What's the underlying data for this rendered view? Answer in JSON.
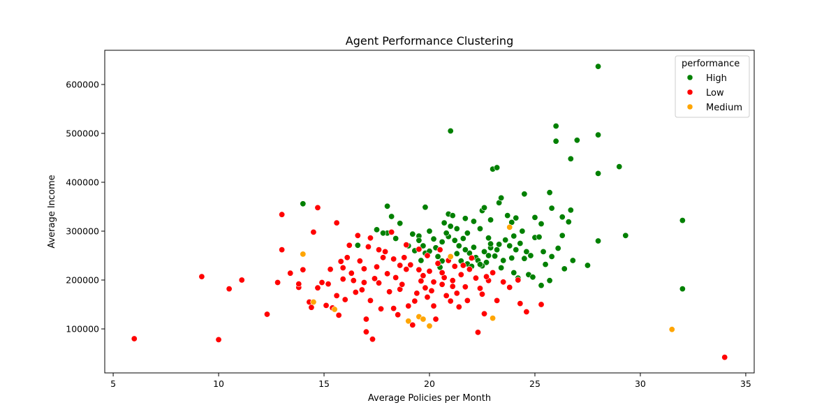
{
  "chart_data": {
    "type": "scatter",
    "title": "Agent Performance Clustering",
    "xlabel": "Average Policies per Month",
    "ylabel": "Average Income",
    "xlim": [
      4.6,
      35.4
    ],
    "ylim": [
      10000,
      670000
    ],
    "xticks": [
      5,
      10,
      15,
      20,
      25,
      30,
      35
    ],
    "yticks": [
      100000,
      200000,
      300000,
      400000,
      500000,
      600000
    ],
    "grid": false,
    "legend": {
      "title": "performance",
      "placement": "top-right",
      "entries": [
        "High",
        "Low",
        "Medium"
      ]
    },
    "series": [
      {
        "name": "High",
        "color": "#008000",
        "points": [
          [
            28,
            637000
          ],
          [
            21,
            505000
          ],
          [
            26,
            515000
          ],
          [
            26,
            484000
          ],
          [
            27,
            486000
          ],
          [
            28,
            497000
          ],
          [
            26.7,
            448000
          ],
          [
            29,
            432000
          ],
          [
            23,
            427000
          ],
          [
            23.2,
            430000
          ],
          [
            28,
            418000
          ],
          [
            24.5,
            376000
          ],
          [
            25.7,
            379000
          ],
          [
            23.3,
            358000
          ],
          [
            23.4,
            368000
          ],
          [
            25.8,
            347000
          ],
          [
            26.7,
            343000
          ],
          [
            26.3,
            329000
          ],
          [
            26.6,
            319000
          ],
          [
            32,
            322000
          ],
          [
            29.3,
            291000
          ],
          [
            28,
            280000
          ],
          [
            32,
            182000
          ],
          [
            27.5,
            230000
          ],
          [
            26.8,
            240000
          ],
          [
            26.4,
            223000
          ],
          [
            25.7,
            199000
          ],
          [
            25.3,
            189000
          ],
          [
            14,
            356000
          ],
          [
            18,
            351000
          ],
          [
            19.8,
            349000
          ],
          [
            18.2,
            330000
          ],
          [
            18.6,
            316000
          ],
          [
            17.5,
            303000
          ],
          [
            18,
            296000
          ],
          [
            17.8,
            296000
          ],
          [
            16.6,
            271000
          ],
          [
            18.4,
            285000
          ],
          [
            19.5,
            290000
          ],
          [
            20,
            300000
          ],
          [
            19,
            270000
          ],
          [
            19.3,
            260000
          ],
          [
            19.8,
            255000
          ],
          [
            20.4,
            248000
          ],
          [
            20.9,
            335000
          ],
          [
            21.1,
            332000
          ],
          [
            20.7,
            317000
          ],
          [
            21,
            310000
          ],
          [
            21.3,
            305000
          ],
          [
            21.7,
            326000
          ],
          [
            22.1,
            320000
          ],
          [
            22.5,
            342000
          ],
          [
            22.6,
            348000
          ],
          [
            22.9,
            323000
          ],
          [
            23.7,
            332000
          ],
          [
            23.9,
            318000
          ],
          [
            24.1,
            327000
          ],
          [
            24.4,
            300000
          ],
          [
            25,
            328000
          ],
          [
            25.3,
            315000
          ],
          [
            25,
            287000
          ],
          [
            25.2,
            288000
          ],
          [
            25.4,
            258000
          ],
          [
            25.5,
            232000
          ],
          [
            25.8,
            248000
          ],
          [
            26.1,
            265000
          ],
          [
            26.3,
            291000
          ],
          [
            24.6,
            258000
          ],
          [
            24.8,
            250000
          ],
          [
            24.3,
            275000
          ],
          [
            24.1,
            262000
          ],
          [
            23.9,
            245000
          ],
          [
            23.5,
            240000
          ],
          [
            23.2,
            262000
          ],
          [
            22.8,
            250000
          ],
          [
            22.7,
            236000
          ],
          [
            22.5,
            229000
          ],
          [
            22.2,
            246000
          ],
          [
            21.9,
            255000
          ],
          [
            21.7,
            262000
          ],
          [
            21.4,
            270000
          ],
          [
            21.2,
            281000
          ],
          [
            20.9,
            289000
          ],
          [
            20.6,
            278000
          ],
          [
            20.3,
            266000
          ],
          [
            20,
            259000
          ],
          [
            19.7,
            270000
          ],
          [
            19.5,
            281000
          ],
          [
            19.2,
            294000
          ],
          [
            21.5,
            239000
          ],
          [
            21.8,
            233000
          ],
          [
            22,
            228000
          ],
          [
            22.3,
            240000
          ],
          [
            22.6,
            258000
          ],
          [
            22.9,
            266000
          ],
          [
            23.3,
            273000
          ],
          [
            23.6,
            282000
          ],
          [
            24,
            290000
          ],
          [
            24.5,
            244000
          ],
          [
            24.7,
            211000
          ],
          [
            24,
            215000
          ],
          [
            23.4,
            225000
          ],
          [
            22.4,
            305000
          ],
          [
            21.8,
            296000
          ],
          [
            20.8,
            296000
          ],
          [
            20.2,
            284000
          ],
          [
            19.6,
            240000
          ],
          [
            22.9,
            274000
          ],
          [
            23.1,
            249000
          ],
          [
            22.1,
            267000
          ],
          [
            21,
            247000
          ],
          [
            20.6,
            239000
          ],
          [
            24.9,
            206000
          ],
          [
            24.2,
            204000
          ],
          [
            23.8,
            270000
          ],
          [
            21.6,
            285000
          ],
          [
            22.8,
            286000
          ],
          [
            21.3,
            254000
          ],
          [
            20.5,
            226000
          ],
          [
            22.4,
            232000
          ]
        ]
      },
      {
        "name": "Low",
        "color": "#ff0000",
        "points": [
          [
            6,
            80000
          ],
          [
            9.2,
            207000
          ],
          [
            10,
            78000
          ],
          [
            10.5,
            182000
          ],
          [
            11.1,
            200000
          ],
          [
            12.3,
            130000
          ],
          [
            12.8,
            195000
          ],
          [
            13,
            262000
          ],
          [
            13,
            334000
          ],
          [
            13.4,
            214000
          ],
          [
            13.8,
            185000
          ],
          [
            13.8,
            192000
          ],
          [
            14,
            221000
          ],
          [
            14.3,
            155000
          ],
          [
            14.4,
            144000
          ],
          [
            14.5,
            298000
          ],
          [
            14.7,
            348000
          ],
          [
            14.7,
            184000
          ],
          [
            14.9,
            195000
          ],
          [
            15.1,
            148000
          ],
          [
            15.2,
            192000
          ],
          [
            15.3,
            222000
          ],
          [
            15.4,
            143000
          ],
          [
            15.6,
            317000
          ],
          [
            15.7,
            128000
          ],
          [
            15.6,
            168000
          ],
          [
            15.8,
            238000
          ],
          [
            15.9,
            202000
          ],
          [
            16.1,
            246000
          ],
          [
            16.2,
            271000
          ],
          [
            16.3,
            214000
          ],
          [
            16.4,
            199000
          ],
          [
            16.6,
            291000
          ],
          [
            16.7,
            239000
          ],
          [
            16.8,
            180000
          ],
          [
            16.9,
            223000
          ],
          [
            17,
            120000
          ],
          [
            17,
            94000
          ],
          [
            17.3,
            79000
          ],
          [
            17.1,
            268000
          ],
          [
            17.2,
            286000
          ],
          [
            17.5,
            227000
          ],
          [
            17.6,
            194000
          ],
          [
            17.7,
            141000
          ],
          [
            17.9,
            258000
          ],
          [
            18,
            213000
          ],
          [
            18.2,
            298000
          ],
          [
            18.3,
            142000
          ],
          [
            18.5,
            129000
          ],
          [
            18.6,
            181000
          ],
          [
            18.8,
            246000
          ],
          [
            18.9,
            222000
          ],
          [
            19,
            147000
          ],
          [
            19.2,
            108000
          ],
          [
            19.4,
            173000
          ],
          [
            19.5,
            263000
          ],
          [
            19.6,
            198000
          ],
          [
            19.8,
            184000
          ],
          [
            19.9,
            165000
          ],
          [
            20,
            218000
          ],
          [
            20.2,
            147000
          ],
          [
            20.3,
            120000
          ],
          [
            20.5,
            262000
          ],
          [
            20.6,
            191000
          ],
          [
            20.8,
            168000
          ],
          [
            20.9,
            240000
          ],
          [
            21.1,
            199000
          ],
          [
            21.2,
            228000
          ],
          [
            21.4,
            145000
          ],
          [
            21.5,
            211000
          ],
          [
            21.7,
            186000
          ],
          [
            21.8,
            158000
          ],
          [
            22,
            245000
          ],
          [
            22.2,
            204000
          ],
          [
            22.3,
            93000
          ],
          [
            22.5,
            171000
          ],
          [
            22.6,
            131000
          ],
          [
            22.8,
            199000
          ],
          [
            23,
            215000
          ],
          [
            23.2,
            158000
          ],
          [
            23.5,
            196000
          ],
          [
            23.8,
            185000
          ],
          [
            24.2,
            200000
          ],
          [
            24.3,
            152000
          ],
          [
            24.6,
            135000
          ],
          [
            25.3,
            150000
          ],
          [
            34,
            42000
          ],
          [
            16.5,
            175000
          ],
          [
            17.4,
            203000
          ],
          [
            18.1,
            176000
          ],
          [
            18.7,
            191000
          ],
          [
            19.1,
            231000
          ],
          [
            19.7,
            209000
          ],
          [
            20.1,
            178000
          ],
          [
            20.7,
            205000
          ],
          [
            21.3,
            173000
          ],
          [
            21.9,
            222000
          ],
          [
            22.4,
            183000
          ],
          [
            17.8,
            246000
          ],
          [
            18.4,
            205000
          ],
          [
            19.3,
            157000
          ],
          [
            20.4,
            234000
          ],
          [
            21,
            157000
          ],
          [
            21.6,
            230000
          ],
          [
            16,
            160000
          ],
          [
            16.9,
            195000
          ],
          [
            18.9,
            272000
          ],
          [
            19.9,
            250000
          ],
          [
            17.2,
            158000
          ],
          [
            18.6,
            230000
          ],
          [
            20.6,
            215000
          ],
          [
            15.9,
            225000
          ],
          [
            22.7,
            207000
          ],
          [
            19.5,
            221000
          ],
          [
            17.6,
            262000
          ],
          [
            21.1,
            187000
          ],
          [
            18.3,
            243000
          ],
          [
            20.2,
            196000
          ]
        ]
      },
      {
        "name": "Medium",
        "color": "#ffa500",
        "points": [
          [
            14,
            253000
          ],
          [
            14.5,
            155000
          ],
          [
            15.5,
            140000
          ],
          [
            19,
            116000
          ],
          [
            19.5,
            125000
          ],
          [
            19.7,
            120000
          ],
          [
            20,
            106000
          ],
          [
            21,
            248000
          ],
          [
            23,
            122000
          ],
          [
            23.8,
            308000
          ],
          [
            31.5,
            99000
          ]
        ]
      }
    ]
  }
}
